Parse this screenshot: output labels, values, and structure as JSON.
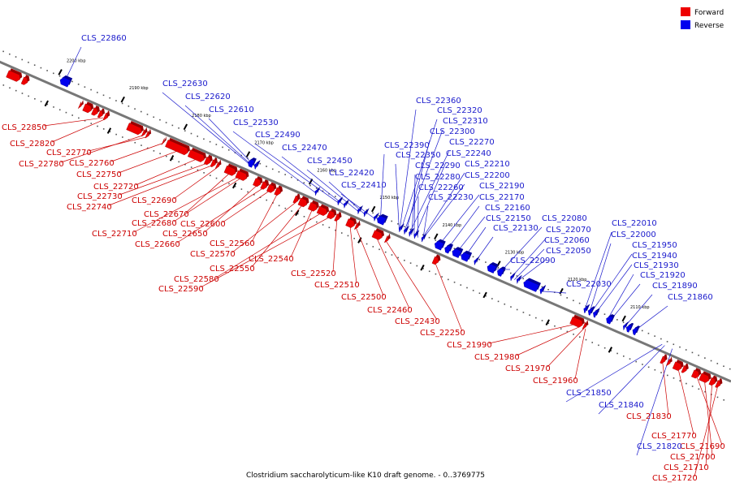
{
  "caption": "Clostridium saccharolyticum-like K10 draft genome. - 0..3769775",
  "legend": [
    {
      "label": "Forward",
      "color": "#ee0000"
    },
    {
      "label": "Reverse",
      "color": "#0000ee"
    }
  ],
  "colors": {
    "forward": "#ee0000",
    "forward_dark": "#990000",
    "reverse": "#0000ee",
    "reverse_dark": "#000099",
    "forward_text": "#cc0000",
    "reverse_text": "#1a1acc",
    "backbone": "#777777"
  },
  "ticks": [
    {
      "label": "2200 kbp",
      "kbp": 2200
    },
    {
      "label": "2190 kbp",
      "kbp": 2190
    },
    {
      "label": "2180 kbp",
      "kbp": 2180
    },
    {
      "label": "2170 kbp",
      "kbp": 2170
    },
    {
      "label": "2160 kbp",
      "kbp": 2160
    },
    {
      "label": "2150 kbp",
      "kbp": 2150
    },
    {
      "label": "2140 kbp",
      "kbp": 2140
    },
    {
      "label": "2130 kbp",
      "kbp": 2130
    },
    {
      "label": "2120 kbp",
      "kbp": 2120
    },
    {
      "label": "2110 kbp",
      "kbp": 2110
    }
  ],
  "forward_genes": [
    {
      "start": 2207.0,
      "end": 2205.0
    },
    {
      "start": 2204.6,
      "end": 2203.8
    },
    {
      "start": 2195.5,
      "end": 2195.2
    },
    {
      "start": 2194.8,
      "end": 2193.6
    },
    {
      "start": 2193.4,
      "end": 2192.6
    },
    {
      "start": 2192.4,
      "end": 2191.8
    },
    {
      "start": 2191.5,
      "end": 2191.0
    },
    {
      "start": 2187.8,
      "end": 2185.6
    },
    {
      "start": 2185.4,
      "end": 2185.0
    },
    {
      "start": 2184.8,
      "end": 2184.4
    },
    {
      "start": 2182.2,
      "end": 2182.0
    },
    {
      "start": 2181.6,
      "end": 2178.2
    },
    {
      "start": 2178.0,
      "end": 2175.6
    },
    {
      "start": 2175.4,
      "end": 2174.6
    },
    {
      "start": 2174.4,
      "end": 2173.8
    },
    {
      "start": 2173.6,
      "end": 2173.2
    },
    {
      "start": 2172.2,
      "end": 2170.6
    },
    {
      "start": 2170.4,
      "end": 2168.8
    },
    {
      "start": 2167.6,
      "end": 2166.6
    },
    {
      "start": 2166.4,
      "end": 2165.6
    },
    {
      "start": 2165.4,
      "end": 2164.4
    },
    {
      "start": 2164.2,
      "end": 2163.4
    },
    {
      "start": 2161.2,
      "end": 2160.6
    },
    {
      "start": 2160.4,
      "end": 2159.2
    },
    {
      "start": 2158.8,
      "end": 2157.6
    },
    {
      "start": 2157.4,
      "end": 2156.0
    },
    {
      "start": 2155.8,
      "end": 2154.8
    },
    {
      "start": 2154.6,
      "end": 2154.0
    },
    {
      "start": 2152.8,
      "end": 2151.6
    },
    {
      "start": 2151.4,
      "end": 2151.0
    },
    {
      "start": 2148.6,
      "end": 2147.2
    },
    {
      "start": 2146.6,
      "end": 2146.2
    },
    {
      "start": 2139.0,
      "end": 2138.2
    },
    {
      "start": 2117.0,
      "end": 2115.2
    },
    {
      "start": 2115.0,
      "end": 2114.6
    },
    {
      "start": 2102.6,
      "end": 2102.0
    },
    {
      "start": 2101.6,
      "end": 2101.2
    },
    {
      "start": 2100.6,
      "end": 2099.4
    },
    {
      "start": 2099.2,
      "end": 2098.6
    },
    {
      "start": 2097.6,
      "end": 2096.6
    },
    {
      "start": 2096.4,
      "end": 2095.0
    },
    {
      "start": 2094.8,
      "end": 2094.0
    },
    {
      "start": 2093.8,
      "end": 2093.2
    }
  ],
  "reverse_genes": [
    {
      "start": 2198.2,
      "end": 2199.6
    },
    {
      "start": 2168.2,
      "end": 2168.6
    },
    {
      "start": 2168.8,
      "end": 2169.6
    },
    {
      "start": 2158.6,
      "end": 2158.9
    },
    {
      "start": 2155.0,
      "end": 2155.3
    },
    {
      "start": 2154.0,
      "end": 2154.3
    },
    {
      "start": 2151.8,
      "end": 2152.1
    },
    {
      "start": 2150.8,
      "end": 2151.1
    },
    {
      "start": 2149.2,
      "end": 2149.5
    },
    {
      "start": 2147.8,
      "end": 2149.0
    },
    {
      "start": 2145.2,
      "end": 2145.5
    },
    {
      "start": 2144.4,
      "end": 2144.7
    },
    {
      "start": 2143.6,
      "end": 2143.9
    },
    {
      "start": 2142.8,
      "end": 2143.1
    },
    {
      "start": 2141.6,
      "end": 2141.9
    },
    {
      "start": 2138.6,
      "end": 2139.8
    },
    {
      "start": 2137.4,
      "end": 2138.2
    },
    {
      "start": 2135.8,
      "end": 2137.0
    },
    {
      "start": 2134.4,
      "end": 2135.6
    },
    {
      "start": 2133.2,
      "end": 2133.5
    },
    {
      "start": 2130.2,
      "end": 2131.4
    },
    {
      "start": 2129.0,
      "end": 2129.8
    },
    {
      "start": 2127.4,
      "end": 2127.7
    },
    {
      "start": 2126.4,
      "end": 2126.7
    },
    {
      "start": 2123.4,
      "end": 2125.6
    },
    {
      "start": 2122.6,
      "end": 2123.0
    },
    {
      "start": 2115.6,
      "end": 2116.0
    },
    {
      "start": 2114.8,
      "end": 2115.3
    },
    {
      "start": 2114.0,
      "end": 2114.5
    },
    {
      "start": 2111.6,
      "end": 2112.4
    },
    {
      "start": 2109.4,
      "end": 2109.7
    },
    {
      "start": 2108.6,
      "end": 2109.2
    },
    {
      "start": 2107.6,
      "end": 2108.2
    }
  ],
  "forward_labels": [
    {
      "text": "CLS_22850",
      "kbp": 2191.6
    },
    {
      "text": "CLS_22820",
      "kbp": 2191.2
    },
    {
      "text": "CLS_22770",
      "kbp": 2184.6
    },
    {
      "text": "CLS_22780",
      "kbp": 2185.2
    },
    {
      "text": "CLS_22760",
      "kbp": 2182.2
    },
    {
      "text": "CLS_22750",
      "kbp": 2179.6
    },
    {
      "text": "CLS_22720",
      "kbp": 2176.6
    },
    {
      "text": "CLS_22730",
      "kbp": 2175.0
    },
    {
      "text": "CLS_22740",
      "kbp": 2174.2
    },
    {
      "text": "CLS_22690",
      "kbp": 2173.4
    },
    {
      "text": "CLS_22670",
      "kbp": 2171.4
    },
    {
      "text": "CLS_22680",
      "kbp": 2169.6
    },
    {
      "text": "CLS_22710",
      "kbp": 2170.0
    },
    {
      "text": "CLS_22650",
      "kbp": 2167.0
    },
    {
      "text": "CLS_22600",
      "kbp": 2165.0
    },
    {
      "text": "CLS_22660",
      "kbp": 2166.0
    },
    {
      "text": "CLS_22560",
      "kbp": 2163.8
    },
    {
      "text": "CLS_22570",
      "kbp": 2160.8
    },
    {
      "text": "CLS_22550",
      "kbp": 2159.8
    },
    {
      "text": "CLS_22540",
      "kbp": 2158.2
    },
    {
      "text": "CLS_22580",
      "kbp": 2156.8
    },
    {
      "text": "CLS_22590",
      "kbp": 2155.4
    },
    {
      "text": "CLS_22520",
      "kbp": 2154.3
    },
    {
      "text": "CLS_22510",
      "kbp": 2152.2
    },
    {
      "text": "CLS_22500",
      "kbp": 2151.2
    },
    {
      "text": "CLS_22460",
      "kbp": 2148.0
    },
    {
      "text": "CLS_22430",
      "kbp": 2146.4
    },
    {
      "text": "CLS_22250",
      "kbp": 2138.6
    },
    {
      "text": "CLS_21990",
      "kbp": 2116.2
    },
    {
      "text": "CLS_21980",
      "kbp": 2115.4
    },
    {
      "text": "CLS_21970",
      "kbp": 2114.8
    },
    {
      "text": "CLS_21960",
      "kbp": 2114.6
    },
    {
      "text": "CLS_21830",
      "kbp": 2102.3
    },
    {
      "text": "CLS_21770",
      "kbp": 2099.8
    },
    {
      "text": "CLS_21690",
      "kbp": 2096.8
    },
    {
      "text": "CLS_21700",
      "kbp": 2095.6
    },
    {
      "text": "CLS_21710",
      "kbp": 2094.4
    },
    {
      "text": "CLS_21720",
      "kbp": 2093.5
    }
  ],
  "reverse_labels": [
    {
      "text": "CLS_22860",
      "kbp": 2198.9
    },
    {
      "text": "CLS_22630",
      "kbp": 2169.4
    },
    {
      "text": "CLS_22620",
      "kbp": 2169.0
    },
    {
      "text": "CLS_22610",
      "kbp": 2168.4
    },
    {
      "text": "CLS_22530",
      "kbp": 2158.7
    },
    {
      "text": "CLS_22490",
      "kbp": 2155.1
    },
    {
      "text": "CLS_22470",
      "kbp": 2154.1
    },
    {
      "text": "CLS_22450",
      "kbp": 2151.9
    },
    {
      "text": "CLS_22420",
      "kbp": 2150.9
    },
    {
      "text": "CLS_22410",
      "kbp": 2149.3
    },
    {
      "text": "CLS_22390",
      "kbp": 2148.4
    },
    {
      "text": "CLS_22360",
      "kbp": 2145.3
    },
    {
      "text": "CLS_22320",
      "kbp": 2145.1
    },
    {
      "text": "CLS_22310",
      "kbp": 2144.6
    },
    {
      "text": "CLS_22300",
      "kbp": 2144.3
    },
    {
      "text": "CLS_22270",
      "kbp": 2143.8
    },
    {
      "text": "CLS_22350",
      "kbp": 2145.4
    },
    {
      "text": "CLS_22240",
      "kbp": 2142.9
    },
    {
      "text": "CLS_22290",
      "kbp": 2143.0
    },
    {
      "text": "CLS_22210",
      "kbp": 2141.8
    },
    {
      "text": "CLS_22280",
      "kbp": 2143.4
    },
    {
      "text": "CLS_22200",
      "kbp": 2141.7
    },
    {
      "text": "CLS_22260",
      "kbp": 2142.4
    },
    {
      "text": "CLS_22190",
      "kbp": 2139.2
    },
    {
      "text": "CLS_22230",
      "kbp": 2141.6
    },
    {
      "text": "CLS_22170",
      "kbp": 2137.8
    },
    {
      "text": "CLS_22160",
      "kbp": 2136.4
    },
    {
      "text": "CLS_22150",
      "kbp": 2135.0
    },
    {
      "text": "CLS_22130",
      "kbp": 2133.3
    },
    {
      "text": "CLS_22080",
      "kbp": 2129.4
    },
    {
      "text": "CLS_22070",
      "kbp": 2127.6
    },
    {
      "text": "CLS_22060",
      "kbp": 2127.0
    },
    {
      "text": "CLS_22050",
      "kbp": 2126.5
    },
    {
      "text": "CLS_22090",
      "kbp": 2130.8
    },
    {
      "text": "CLS_22030",
      "kbp": 2122.8
    },
    {
      "text": "CLS_22010",
      "kbp": 2115.8
    },
    {
      "text": "CLS_22000",
      "kbp": 2115.0
    },
    {
      "text": "CLS_21950",
      "kbp": 2114.8
    },
    {
      "text": "CLS_21940",
      "kbp": 2114.2
    },
    {
      "text": "CLS_21930",
      "kbp": 2112.2
    },
    {
      "text": "CLS_21920",
      "kbp": 2111.8
    },
    {
      "text": "CLS_21890",
      "kbp": 2109.5
    },
    {
      "text": "CLS_21860",
      "kbp": 2108.0
    },
    {
      "text": "CLS_21850",
      "kbp": 2103.4
    },
    {
      "text": "CLS_21840",
      "kbp": 2103.0
    },
    {
      "text": "CLS_21820",
      "kbp": 2101.8
    }
  ]
}
